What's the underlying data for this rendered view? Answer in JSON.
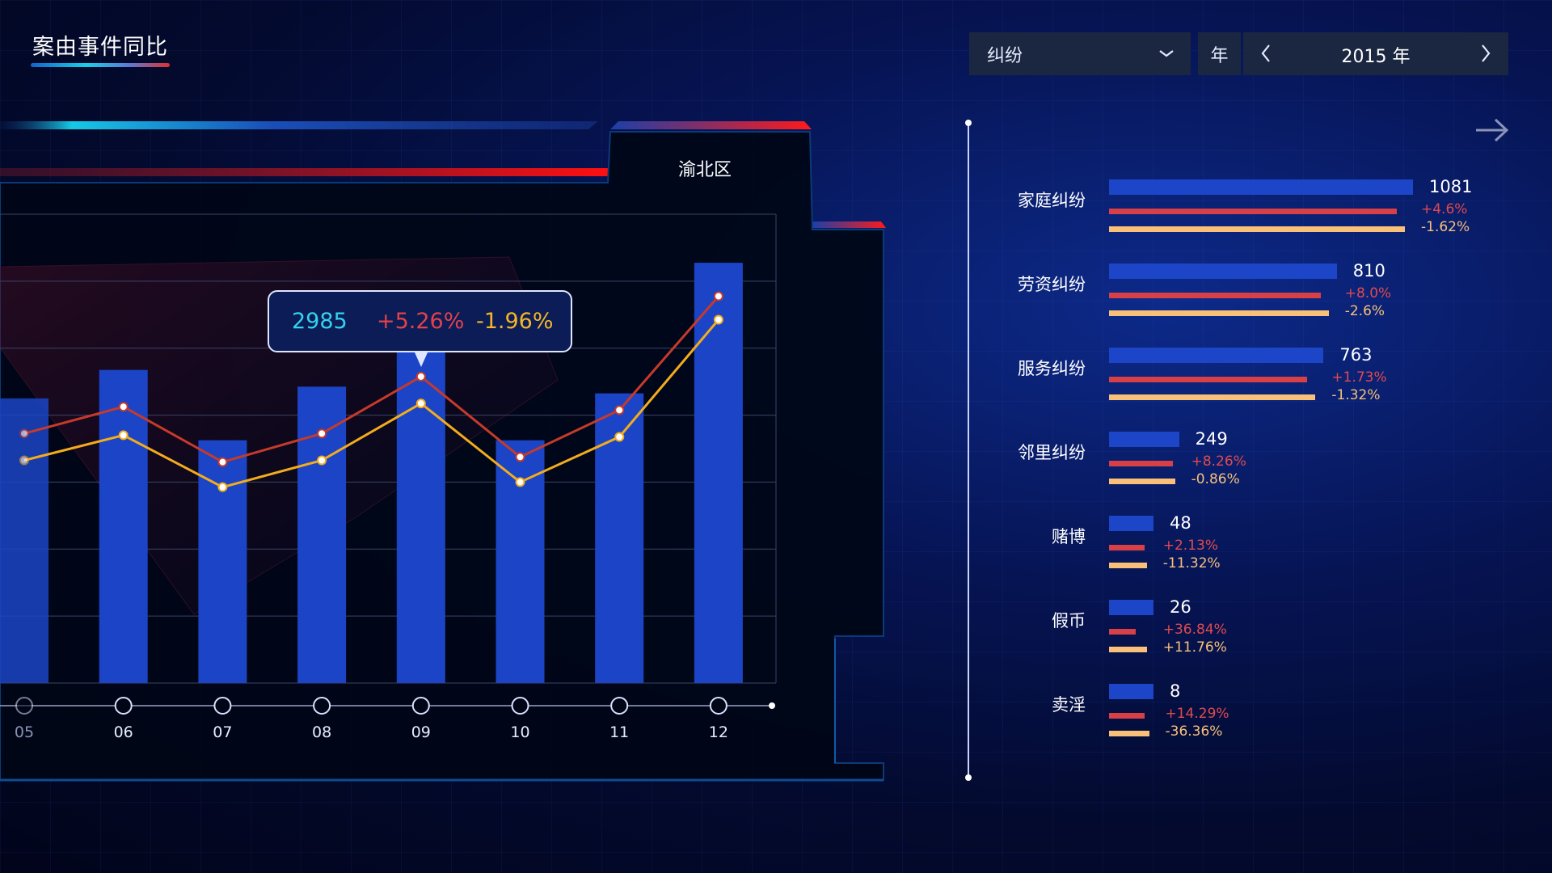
{
  "header": {
    "title": "案由事件同比"
  },
  "controls": {
    "category": "纠纷",
    "year_unit": "年",
    "year": "2015 年"
  },
  "district": "渝北区",
  "tooltip": {
    "total": "2985",
    "yoy": "+5.26%",
    "mom": "-1.96%"
  },
  "chart_data": {
    "type": "bar",
    "categories": [
      "05",
      "06",
      "07",
      "08",
      "09",
      "10",
      "11",
      "12"
    ],
    "series": [
      {
        "type": "bar",
        "values": [
          2700,
          2870,
          2450,
          2770,
          2985,
          2450,
          2730,
          3510
        ]
      },
      {
        "type": "line",
        "values": [
          2490,
          2650,
          2320,
          2490,
          2830,
          2350,
          2630,
          3310
        ]
      },
      {
        "type": "line",
        "values": [
          2330,
          2480,
          2170,
          2330,
          2670,
          2200,
          2470,
          3170
        ]
      }
    ],
    "ylim": [
      1000,
      3800
    ],
    "highlight_index": 4,
    "colors": {
      "bar": "#1b45c6",
      "yoy_line": "#c63a2a",
      "mom_line": "#f3ac1c"
    }
  },
  "breakdown": [
    {
      "label": "家庭纠纷",
      "count": 1081,
      "count_text": "1081",
      "yoy": 4.6,
      "yoy_text": "+4.6%",
      "mom": -1.62,
      "mom_text": "-1.62%"
    },
    {
      "label": "劳资纠纷",
      "count": 810,
      "count_text": "810",
      "yoy": 8.0,
      "yoy_text": "+8.0%",
      "mom": -2.6,
      "mom_text": "-2.6%"
    },
    {
      "label": "服务纠纷",
      "count": 763,
      "count_text": "763",
      "yoy": 1.73,
      "yoy_text": "+1.73%",
      "mom": -1.32,
      "mom_text": "-1.32%"
    },
    {
      "label": "邻里纠纷",
      "count": 249,
      "count_text": "249",
      "yoy": 8.26,
      "yoy_text": "+8.26%",
      "mom": -0.86,
      "mom_text": "-0.86%"
    },
    {
      "label": "赌博",
      "count": 48,
      "count_text": "48",
      "yoy": 2.13,
      "yoy_text": "+2.13%",
      "mom": -11.32,
      "mom_text": "-11.32%"
    },
    {
      "label": "假币",
      "count": 26,
      "count_text": "26",
      "yoy": 36.84,
      "yoy_text": "+36.84%",
      "mom": 11.76,
      "mom_text": "+11.76%"
    },
    {
      "label": "卖淫",
      "count": 8,
      "count_text": "8",
      "yoy": 14.29,
      "yoy_text": "+14.29%",
      "mom": -36.36,
      "mom_text": "-36.36%"
    }
  ]
}
